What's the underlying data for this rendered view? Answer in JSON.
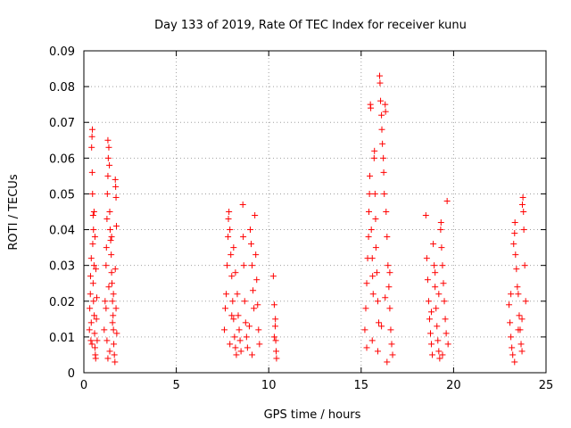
{
  "chart_data": {
    "type": "scatter",
    "title": "Day 133 of 2019, Rate Of TEC Index for receiver kunu",
    "xlabel": "GPS time / hours",
    "ylabel": "ROTI / TECUs",
    "xlim": [
      0,
      25
    ],
    "ylim": [
      0,
      0.09
    ],
    "xticks": [
      "0",
      "5",
      "10",
      "15",
      "20",
      "25"
    ],
    "yticks": [
      "0",
      "0.01",
      "0.02",
      "0.03",
      "0.04",
      "0.05",
      "0.06",
      "0.07",
      "0.08",
      "0.09"
    ],
    "grid": true,
    "marker": "plus",
    "color": "#ff0000",
    "series": [
      {
        "points": [
          [
            0.3,
            0.012
          ],
          [
            0.32,
            0.018
          ],
          [
            0.35,
            0.022
          ],
          [
            0.38,
            0.009
          ],
          [
            0.4,
            0.014
          ],
          [
            0.42,
            0.063
          ],
          [
            0.44,
            0.066
          ],
          [
            0.46,
            0.068
          ],
          [
            0.45,
            0.056
          ],
          [
            0.47,
            0.05
          ],
          [
            0.5,
            0.044
          ],
          [
            0.52,
            0.04
          ],
          [
            0.48,
            0.036
          ],
          [
            0.55,
            0.03
          ],
          [
            0.5,
            0.025
          ],
          [
            0.52,
            0.02
          ],
          [
            0.56,
            0.016
          ],
          [
            0.58,
            0.011
          ],
          [
            0.6,
            0.007
          ],
          [
            0.62,
            0.005
          ],
          [
            0.36,
            0.027
          ],
          [
            0.4,
            0.032
          ],
          [
            0.55,
            0.045
          ],
          [
            0.6,
            0.038
          ],
          [
            0.65,
            0.029
          ],
          [
            0.7,
            0.021
          ],
          [
            0.68,
            0.015
          ],
          [
            0.72,
            0.009
          ],
          [
            0.64,
            0.004
          ],
          [
            0.44,
            0.008
          ],
          [
            1.1,
            0.012
          ],
          [
            1.15,
            0.02
          ],
          [
            1.2,
            0.03
          ],
          [
            1.22,
            0.035
          ],
          [
            1.25,
            0.043
          ],
          [
            1.27,
            0.05
          ],
          [
            1.3,
            0.055
          ],
          [
            1.32,
            0.06
          ],
          [
            1.35,
            0.063
          ],
          [
            1.3,
            0.065
          ],
          [
            1.38,
            0.058
          ],
          [
            1.4,
            0.045
          ],
          [
            1.42,
            0.04
          ],
          [
            1.45,
            0.037
          ],
          [
            1.48,
            0.033
          ],
          [
            1.5,
            0.028
          ],
          [
            1.52,
            0.025
          ],
          [
            1.55,
            0.02
          ],
          [
            1.58,
            0.016
          ],
          [
            1.6,
            0.012
          ],
          [
            1.62,
            0.008
          ],
          [
            1.65,
            0.005
          ],
          [
            1.68,
            0.003
          ],
          [
            1.7,
            0.054
          ],
          [
            1.72,
            0.052
          ],
          [
            1.74,
            0.049
          ],
          [
            1.76,
            0.041
          ],
          [
            1.5,
            0.038
          ],
          [
            1.35,
            0.024
          ],
          [
            1.2,
            0.018
          ],
          [
            1.25,
            0.009
          ],
          [
            1.4,
            0.006
          ],
          [
            1.55,
            0.014
          ],
          [
            1.6,
            0.022
          ],
          [
            1.7,
            0.029
          ],
          [
            1.74,
            0.018
          ],
          [
            1.78,
            0.011
          ],
          [
            1.3,
            0.004
          ],
          [
            7.6,
            0.012
          ],
          [
            7.65,
            0.018
          ],
          [
            7.7,
            0.022
          ],
          [
            7.75,
            0.03
          ],
          [
            7.8,
            0.038
          ],
          [
            7.82,
            0.043
          ],
          [
            7.85,
            0.045
          ],
          [
            7.9,
            0.04
          ],
          [
            7.95,
            0.033
          ],
          [
            8.0,
            0.027
          ],
          [
            8.05,
            0.02
          ],
          [
            8.1,
            0.015
          ],
          [
            8.15,
            0.01
          ],
          [
            8.2,
            0.007
          ],
          [
            8.25,
            0.005
          ],
          [
            8.1,
            0.035
          ],
          [
            8.2,
            0.028
          ],
          [
            8.3,
            0.022
          ],
          [
            8.35,
            0.016
          ],
          [
            8.4,
            0.012
          ],
          [
            8.45,
            0.009
          ],
          [
            8.5,
            0.006
          ],
          [
            8.6,
            0.047
          ],
          [
            8.62,
            0.038
          ],
          [
            8.65,
            0.03
          ],
          [
            8.7,
            0.02
          ],
          [
            8.75,
            0.014
          ],
          [
            8.8,
            0.01
          ],
          [
            8.85,
            0.007
          ],
          [
            9.0,
            0.04
          ],
          [
            9.05,
            0.036
          ],
          [
            9.1,
            0.03
          ],
          [
            9.15,
            0.023
          ],
          [
            9.2,
            0.018
          ],
          [
            9.25,
            0.044
          ],
          [
            9.3,
            0.033
          ],
          [
            9.35,
            0.026
          ],
          [
            9.4,
            0.019
          ],
          [
            9.45,
            0.012
          ],
          [
            9.5,
            0.008
          ],
          [
            9.1,
            0.005
          ],
          [
            8.95,
            0.013
          ],
          [
            7.9,
            0.008
          ],
          [
            8.0,
            0.016
          ],
          [
            10.25,
            0.027
          ],
          [
            10.3,
            0.019
          ],
          [
            10.35,
            0.013
          ],
          [
            10.38,
            0.009
          ],
          [
            10.4,
            0.006
          ],
          [
            10.42,
            0.004
          ],
          [
            10.3,
            0.01
          ],
          [
            10.36,
            0.015
          ],
          [
            15.2,
            0.012
          ],
          [
            15.25,
            0.018
          ],
          [
            15.3,
            0.025
          ],
          [
            15.35,
            0.032
          ],
          [
            15.4,
            0.038
          ],
          [
            15.42,
            0.045
          ],
          [
            15.45,
            0.05
          ],
          [
            15.47,
            0.055
          ],
          [
            15.5,
            0.075
          ],
          [
            15.52,
            0.074
          ],
          [
            15.55,
            0.04
          ],
          [
            15.6,
            0.032
          ],
          [
            15.62,
            0.027
          ],
          [
            15.65,
            0.022
          ],
          [
            15.7,
            0.06
          ],
          [
            15.72,
            0.062
          ],
          [
            15.75,
            0.05
          ],
          [
            15.78,
            0.043
          ],
          [
            15.8,
            0.035
          ],
          [
            15.85,
            0.028
          ],
          [
            15.9,
            0.02
          ],
          [
            15.95,
            0.014
          ],
          [
            16.0,
            0.083
          ],
          [
            16.02,
            0.081
          ],
          [
            16.05,
            0.076
          ],
          [
            16.1,
            0.072
          ],
          [
            16.12,
            0.068
          ],
          [
            16.15,
            0.064
          ],
          [
            16.2,
            0.06
          ],
          [
            16.22,
            0.056
          ],
          [
            16.25,
            0.05
          ],
          [
            16.3,
            0.075
          ],
          [
            16.32,
            0.073
          ],
          [
            16.35,
            0.045
          ],
          [
            16.4,
            0.038
          ],
          [
            16.45,
            0.03
          ],
          [
            16.5,
            0.024
          ],
          [
            16.55,
            0.018
          ],
          [
            16.6,
            0.012
          ],
          [
            16.65,
            0.008
          ],
          [
            16.7,
            0.005
          ],
          [
            16.4,
            0.003
          ],
          [
            15.3,
            0.007
          ],
          [
            15.6,
            0.009
          ],
          [
            15.9,
            0.006
          ],
          [
            16.1,
            0.013
          ],
          [
            16.3,
            0.021
          ],
          [
            16.55,
            0.028
          ],
          [
            18.5,
            0.044
          ],
          [
            18.55,
            0.032
          ],
          [
            18.6,
            0.026
          ],
          [
            18.65,
            0.02
          ],
          [
            18.7,
            0.015
          ],
          [
            18.75,
            0.011
          ],
          [
            18.8,
            0.008
          ],
          [
            18.85,
            0.005
          ],
          [
            18.9,
            0.036
          ],
          [
            18.95,
            0.03
          ],
          [
            19.0,
            0.024
          ],
          [
            19.05,
            0.018
          ],
          [
            19.1,
            0.013
          ],
          [
            19.15,
            0.009
          ],
          [
            19.2,
            0.006
          ],
          [
            19.25,
            0.004
          ],
          [
            19.3,
            0.04
          ],
          [
            19.32,
            0.042
          ],
          [
            19.35,
            0.035
          ],
          [
            19.4,
            0.03
          ],
          [
            19.45,
            0.025
          ],
          [
            19.5,
            0.02
          ],
          [
            19.55,
            0.015
          ],
          [
            19.6,
            0.011
          ],
          [
            19.65,
            0.048
          ],
          [
            19.7,
            0.008
          ],
          [
            19.4,
            0.005
          ],
          [
            18.8,
            0.017
          ],
          [
            19.0,
            0.028
          ],
          [
            19.2,
            0.022
          ],
          [
            23.0,
            0.019
          ],
          [
            23.05,
            0.014
          ],
          [
            23.1,
            0.01
          ],
          [
            23.15,
            0.007
          ],
          [
            23.2,
            0.005
          ],
          [
            23.25,
            0.036
          ],
          [
            23.3,
            0.039
          ],
          [
            23.32,
            0.042
          ],
          [
            23.35,
            0.033
          ],
          [
            23.4,
            0.029
          ],
          [
            23.45,
            0.024
          ],
          [
            23.5,
            0.022
          ],
          [
            23.55,
            0.016
          ],
          [
            23.6,
            0.012
          ],
          [
            23.65,
            0.008
          ],
          [
            23.7,
            0.006
          ],
          [
            23.72,
            0.047
          ],
          [
            23.75,
            0.049
          ],
          [
            23.78,
            0.045
          ],
          [
            23.8,
            0.04
          ],
          [
            23.85,
            0.03
          ],
          [
            23.9,
            0.02
          ],
          [
            23.3,
            0.003
          ],
          [
            23.5,
            0.012
          ],
          [
            23.7,
            0.015
          ],
          [
            23.1,
            0.022
          ]
        ]
      }
    ]
  }
}
